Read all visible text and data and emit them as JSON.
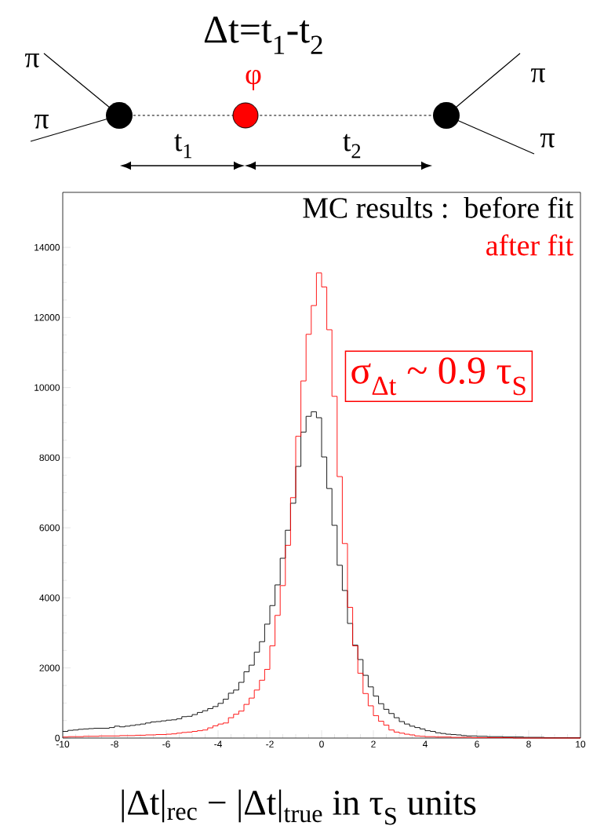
{
  "chart_data": {
    "type": "histogram",
    "title": "Δt=t$_{1}$-t$_{2}$",
    "xlabel": "|Δt|$_{rec}$ − |Δt|$_{true}$      in  τ$_{S}$ units",
    "legend_title": "MC results :",
    "legend": "top right",
    "annotations": [
      "π",
      "π",
      "π",
      "π",
      "φ",
      "t$_{1}$",
      "t$_{2}$",
      "σ$_{Δt}$ ~ 0.9 τ$_{S}$"
    ],
    "bins": [
      -10,
      -9.8,
      -9.6,
      -9.4,
      -9.2,
      -9,
      -8.8,
      -8.6,
      -8.4,
      -8.2,
      -8,
      -7.8,
      -7.6,
      -7.4,
      -7.2,
      -7,
      -6.8,
      -6.6,
      -6.4,
      -6.2,
      -6,
      -5.8,
      -5.6,
      -5.4,
      -5.2,
      -5,
      -4.8,
      -4.6,
      -4.4,
      -4.2,
      -4,
      -3.8,
      -3.6,
      -3.4,
      -3.2,
      -3,
      -2.8,
      -2.6,
      -2.4,
      -2.2,
      -2,
      -1.8,
      -1.6,
      -1.4,
      -1.2,
      -1,
      -0.8,
      -0.6,
      -0.4,
      -0.2,
      0,
      0.2,
      0.4,
      0.6,
      0.8,
      1,
      1.2,
      1.4,
      1.6,
      1.8,
      2,
      2.2,
      2.4,
      2.6,
      2.8,
      3,
      3.2,
      3.4,
      3.6,
      3.8,
      4,
      4.2,
      4.4,
      4.6,
      4.8,
      5,
      5.2,
      5.4,
      5.6,
      5.8,
      6,
      6.2,
      6.4,
      6.6,
      6.8,
      7,
      7.2,
      7.4,
      7.6,
      7.8,
      8,
      8.2,
      8.4,
      8.6,
      8.8,
      9,
      9.2,
      9.4,
      9.6,
      9.8,
      10
    ],
    "series": [
      {
        "name": "before fit",
        "color": "#000000",
        "values": [
          190,
          220,
          230,
          250,
          260,
          270,
          280,
          280,
          280,
          300,
          340,
          320,
          340,
          360,
          380,
          400,
          430,
          460,
          470,
          490,
          510,
          520,
          550,
          610,
          620,
          670,
          730,
          780,
          840,
          900,
          990,
          1110,
          1280,
          1370,
          1590,
          1890,
          2080,
          2450,
          2750,
          3250,
          3780,
          4370,
          5130,
          5930,
          6700,
          7750,
          8730,
          9180,
          9310,
          9140,
          8020,
          7120,
          6070,
          4930,
          4210,
          3270,
          2650,
          2240,
          1790,
          1460,
          1200,
          980,
          820,
          700,
          580,
          470,
          400,
          340,
          300,
          260,
          210,
          190,
          150,
          130,
          110,
          100,
          90,
          70,
          60,
          60,
          50,
          50,
          40,
          40,
          40,
          30,
          30,
          30,
          30,
          20,
          20,
          20,
          20,
          10,
          10,
          10,
          10,
          10,
          10,
          10
        ]
      },
      {
        "name": "after fit",
        "color": "#ff0000",
        "values": [
          30,
          40,
          40,
          40,
          50,
          50,
          50,
          60,
          60,
          60,
          60,
          70,
          70,
          70,
          80,
          80,
          90,
          90,
          100,
          100,
          110,
          120,
          140,
          160,
          170,
          190,
          210,
          230,
          290,
          350,
          400,
          430,
          580,
          680,
          770,
          960,
          1140,
          1370,
          1650,
          1960,
          2630,
          3500,
          4350,
          5500,
          6860,
          8610,
          10190,
          11520,
          12340,
          13270,
          12870,
          11650,
          9750,
          7460,
          5550,
          3730,
          2630,
          1850,
          1270,
          920,
          640,
          480,
          370,
          230,
          170,
          140,
          110,
          90,
          60,
          50,
          40,
          40,
          30,
          30,
          30,
          20,
          20,
          20,
          20,
          10,
          10,
          10,
          10,
          10,
          10,
          10,
          10,
          0,
          0,
          0,
          0,
          0,
          0,
          0,
          0,
          0,
          0,
          0,
          0,
          0
        ]
      }
    ],
    "xlim": [
      -10,
      10
    ],
    "ylim": [
      0,
      15570
    ],
    "xticks": [
      -10,
      -8,
      -6,
      -4,
      -2,
      0,
      2,
      4,
      6,
      8,
      10
    ],
    "yticks": [
      0,
      2000,
      4000,
      6000,
      8000,
      10000,
      12000,
      14000
    ]
  }
}
